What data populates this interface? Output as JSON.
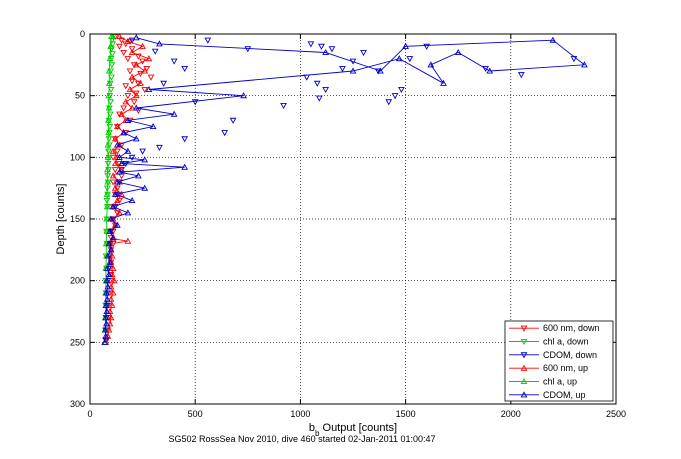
{
  "chart_data": {
    "type": "scatter",
    "xlabel": "b",
    "xlabel_sub": "b",
    "xlabel_rest": " Output [counts]",
    "ylabel": "Depth [counts]",
    "xlim": [
      0,
      2500
    ],
    "ylim": [
      0,
      300
    ],
    "y_reversed": true,
    "grid": true,
    "legend_position": "bottom-right",
    "caption": "SG502 RossSea Nov 2010, dive 460 started 02-Jan-2011 01:00:47",
    "xticks": [
      0,
      500,
      1000,
      1500,
      2000,
      2500
    ],
    "yticks": [
      0,
      50,
      100,
      150,
      200,
      250,
      300
    ],
    "series": [
      {
        "name": "600 nm, down",
        "color": "#ff0000",
        "marker": "triangle-down",
        "line": false,
        "points": [
          [
            120,
            2
          ],
          [
            150,
            5
          ],
          [
            170,
            8
          ],
          [
            190,
            6
          ],
          [
            140,
            10
          ],
          [
            200,
            12
          ],
          [
            160,
            15
          ],
          [
            230,
            18
          ],
          [
            180,
            20
          ],
          [
            250,
            22
          ],
          [
            210,
            25
          ],
          [
            270,
            28
          ],
          [
            190,
            30
          ],
          [
            240,
            32
          ],
          [
            290,
            35
          ],
          [
            200,
            38
          ],
          [
            230,
            40
          ],
          [
            170,
            42
          ],
          [
            260,
            45
          ],
          [
            220,
            48
          ],
          [
            180,
            50
          ],
          [
            210,
            55
          ],
          [
            160,
            60
          ],
          [
            230,
            62
          ],
          [
            140,
            65
          ],
          [
            190,
            70
          ],
          [
            130,
            75
          ],
          [
            170,
            80
          ],
          [
            120,
            85
          ],
          [
            150,
            90
          ],
          [
            130,
            95
          ],
          [
            110,
            100
          ],
          [
            140,
            105
          ],
          [
            120,
            110
          ],
          [
            150,
            115
          ],
          [
            110,
            120
          ],
          [
            130,
            125
          ],
          [
            120,
            130
          ],
          [
            140,
            135
          ],
          [
            110,
            140
          ],
          [
            130,
            145
          ],
          [
            100,
            150
          ],
          [
            120,
            155
          ],
          [
            110,
            160
          ],
          [
            100,
            165
          ],
          [
            110,
            170
          ],
          [
            100,
            175
          ],
          [
            95,
            180
          ],
          [
            100,
            185
          ],
          [
            90,
            190
          ],
          [
            100,
            195
          ],
          [
            95,
            200
          ],
          [
            90,
            210
          ],
          [
            85,
            220
          ],
          [
            90,
            230
          ],
          [
            85,
            240
          ],
          [
            80,
            248
          ]
        ]
      },
      {
        "name": "chl a, down",
        "color": "#00cc00",
        "marker": "triangle-down",
        "line": false,
        "points": [
          [
            110,
            2
          ],
          [
            105,
            5
          ],
          [
            108,
            8
          ],
          [
            102,
            12
          ],
          [
            106,
            16
          ],
          [
            100,
            20
          ],
          [
            104,
            25
          ],
          [
            98,
            30
          ],
          [
            102,
            35
          ],
          [
            96,
            40
          ],
          [
            100,
            45
          ],
          [
            94,
            50
          ],
          [
            98,
            55
          ],
          [
            92,
            60
          ],
          [
            96,
            65
          ],
          [
            90,
            70
          ],
          [
            94,
            75
          ],
          [
            92,
            80
          ],
          [
            90,
            85
          ],
          [
            92,
            90
          ],
          [
            88,
            95
          ],
          [
            90,
            100
          ],
          [
            86,
            105
          ],
          [
            88,
            110
          ],
          [
            84,
            115
          ],
          [
            86,
            120
          ],
          [
            82,
            125
          ],
          [
            84,
            130
          ],
          [
            80,
            135
          ],
          [
            82,
            140
          ],
          [
            80,
            150
          ],
          [
            78,
            160
          ],
          [
            80,
            170
          ],
          [
            76,
            180
          ],
          [
            78,
            190
          ],
          [
            75,
            200
          ],
          [
            76,
            210
          ],
          [
            74,
            220
          ],
          [
            75,
            230
          ],
          [
            73,
            240
          ],
          [
            74,
            248
          ]
        ]
      },
      {
        "name": "CDOM, down",
        "color": "#0000cc",
        "marker": "triangle-down",
        "line": false,
        "points": [
          [
            200,
            5
          ],
          [
            560,
            5
          ],
          [
            750,
            12
          ],
          [
            1050,
            8
          ],
          [
            1100,
            10
          ],
          [
            1150,
            12
          ],
          [
            1030,
            35
          ],
          [
            1080,
            40
          ],
          [
            1120,
            45
          ],
          [
            1090,
            52
          ],
          [
            920,
            58
          ],
          [
            1200,
            28
          ],
          [
            1250,
            22
          ],
          [
            1300,
            15
          ],
          [
            1370,
            30
          ],
          [
            1450,
            50
          ],
          [
            1420,
            55
          ],
          [
            1480,
            45
          ],
          [
            1520,
            20
          ],
          [
            1600,
            10
          ],
          [
            1880,
            28
          ],
          [
            2050,
            33
          ],
          [
            2300,
            20
          ],
          [
            310,
            14
          ],
          [
            400,
            22
          ],
          [
            450,
            28
          ],
          [
            350,
            40
          ],
          [
            500,
            55
          ],
          [
            680,
            70
          ],
          [
            640,
            80
          ],
          [
            450,
            85
          ],
          [
            330,
            92
          ],
          [
            250,
            95
          ],
          [
            200,
            100
          ],
          [
            170,
            105
          ],
          [
            150,
            110
          ],
          [
            140,
            120
          ],
          [
            130,
            130
          ],
          [
            120,
            140
          ],
          [
            110,
            150
          ],
          [
            100,
            160
          ],
          [
            95,
            170
          ],
          [
            90,
            180
          ],
          [
            88,
            190
          ],
          [
            85,
            200
          ],
          [
            82,
            210
          ],
          [
            80,
            220
          ],
          [
            78,
            230
          ],
          [
            76,
            240
          ],
          [
            75,
            248
          ]
        ]
      },
      {
        "name": "600 nm, up",
        "color": "#ff0000",
        "marker": "triangle-up",
        "line": true,
        "points": [
          [
            75,
            250
          ],
          [
            85,
            245
          ],
          [
            90,
            240
          ],
          [
            95,
            235
          ],
          [
            100,
            230
          ],
          [
            95,
            225
          ],
          [
            105,
            220
          ],
          [
            100,
            215
          ],
          [
            110,
            210
          ],
          [
            100,
            205
          ],
          [
            115,
            200
          ],
          [
            105,
            195
          ],
          [
            110,
            190
          ],
          [
            100,
            185
          ],
          [
            105,
            180
          ],
          [
            100,
            175
          ],
          [
            95,
            170
          ],
          [
            180,
            168
          ],
          [
            110,
            166
          ],
          [
            100,
            160
          ],
          [
            120,
            155
          ],
          [
            110,
            150
          ],
          [
            140,
            145
          ],
          [
            110,
            140
          ],
          [
            130,
            135
          ],
          [
            150,
            130
          ],
          [
            120,
            125
          ],
          [
            140,
            120
          ],
          [
            110,
            115
          ],
          [
            150,
            110
          ],
          [
            120,
            105
          ],
          [
            130,
            100
          ],
          [
            110,
            95
          ],
          [
            140,
            90
          ],
          [
            120,
            85
          ],
          [
            160,
            80
          ],
          [
            130,
            75
          ],
          [
            170,
            70
          ],
          [
            150,
            65
          ],
          [
            200,
            60
          ],
          [
            170,
            55
          ],
          [
            220,
            50
          ],
          [
            190,
            45
          ],
          [
            240,
            40
          ],
          [
            200,
            35
          ],
          [
            260,
            30
          ],
          [
            220,
            25
          ],
          [
            280,
            20
          ],
          [
            200,
            15
          ],
          [
            250,
            10
          ],
          [
            180,
            6
          ],
          [
            140,
            2
          ]
        ]
      },
      {
        "name": "chl a, up",
        "color": "#00cc00",
        "marker": "triangle-up",
        "line": true,
        "points": [
          [
            72,
            250
          ],
          [
            74,
            240
          ],
          [
            73,
            230
          ],
          [
            75,
            220
          ],
          [
            74,
            210
          ],
          [
            76,
            200
          ],
          [
            75,
            190
          ],
          [
            78,
            180
          ],
          [
            77,
            170
          ],
          [
            80,
            160
          ],
          [
            79,
            150
          ],
          [
            82,
            140
          ],
          [
            81,
            130
          ],
          [
            84,
            120
          ],
          [
            83,
            110
          ],
          [
            86,
            100
          ],
          [
            85,
            90
          ],
          [
            88,
            80
          ],
          [
            87,
            70
          ],
          [
            90,
            60
          ],
          [
            89,
            50
          ],
          [
            92,
            40
          ],
          [
            91,
            30
          ],
          [
            95,
            20
          ],
          [
            98,
            10
          ],
          [
            102,
            2
          ]
        ]
      },
      {
        "name": "CDOM, up",
        "color": "#0000cc",
        "marker": "triangle-up",
        "line": true,
        "points": [
          [
            70,
            250
          ],
          [
            75,
            245
          ],
          [
            72,
            240
          ],
          [
            78,
            235
          ],
          [
            74,
            230
          ],
          [
            80,
            225
          ],
          [
            76,
            220
          ],
          [
            82,
            215
          ],
          [
            78,
            210
          ],
          [
            85,
            205
          ],
          [
            80,
            200
          ],
          [
            90,
            195
          ],
          [
            82,
            190
          ],
          [
            95,
            185
          ],
          [
            85,
            180
          ],
          [
            100,
            175
          ],
          [
            90,
            170
          ],
          [
            110,
            165
          ],
          [
            95,
            160
          ],
          [
            130,
            155
          ],
          [
            100,
            150
          ],
          [
            180,
            145
          ],
          [
            110,
            140
          ],
          [
            200,
            135
          ],
          [
            120,
            130
          ],
          [
            260,
            125
          ],
          [
            130,
            120
          ],
          [
            230,
            115
          ],
          [
            140,
            112
          ],
          [
            450,
            108
          ],
          [
            150,
            105
          ],
          [
            260,
            102
          ],
          [
            140,
            100
          ],
          [
            180,
            95
          ],
          [
            130,
            90
          ],
          [
            220,
            85
          ],
          [
            160,
            80
          ],
          [
            300,
            75
          ],
          [
            180,
            70
          ],
          [
            400,
            65
          ],
          [
            220,
            60
          ],
          [
            730,
            50
          ],
          [
            280,
            45
          ],
          [
            1250,
            30
          ],
          [
            1470,
            20
          ],
          [
            1680,
            40
          ],
          [
            1620,
            25
          ],
          [
            1750,
            15
          ],
          [
            1900,
            30
          ],
          [
            2350,
            25
          ],
          [
            2200,
            5
          ],
          [
            1500,
            10
          ],
          [
            1380,
            30
          ],
          [
            1120,
            15
          ],
          [
            330,
            8
          ],
          [
            220,
            3
          ]
        ]
      }
    ]
  }
}
